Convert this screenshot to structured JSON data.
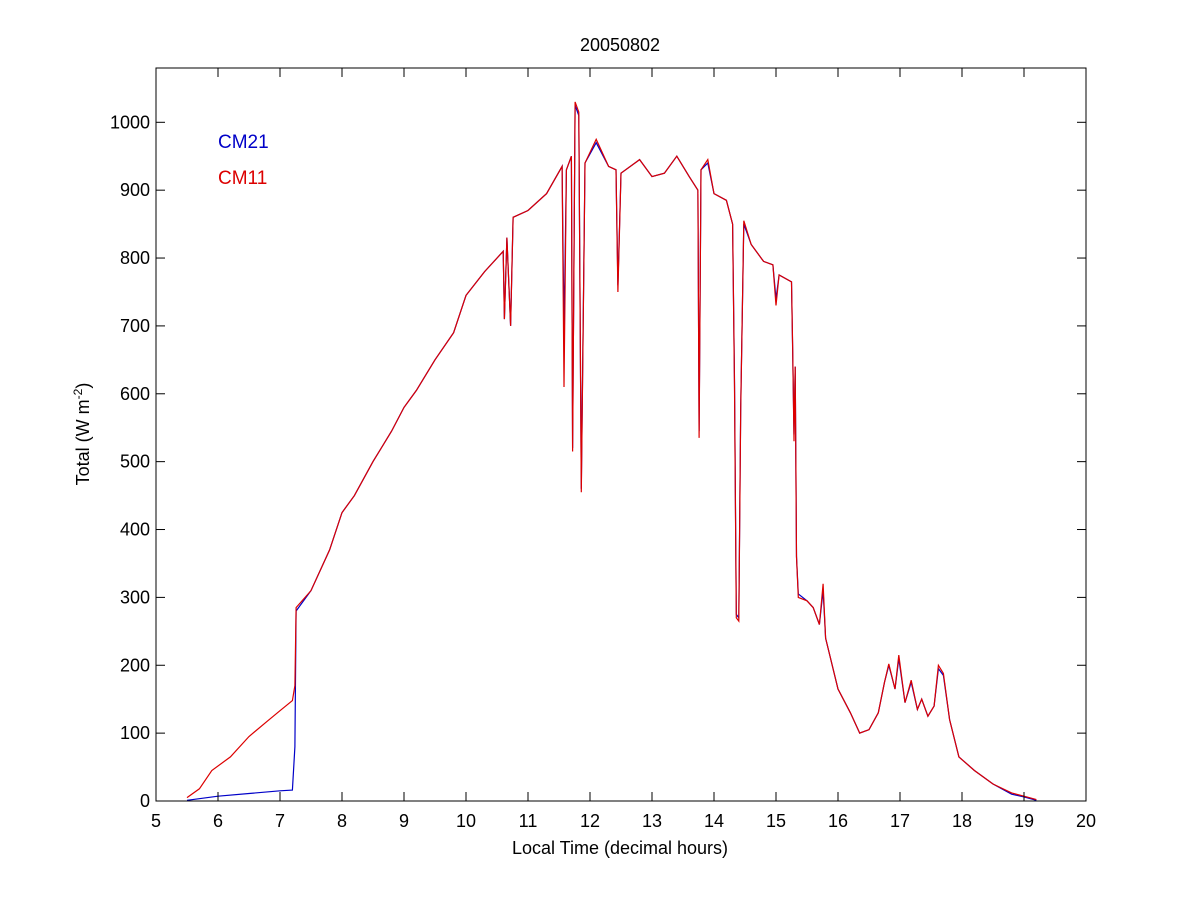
{
  "chart_data": {
    "type": "line",
    "title": "20050802",
    "xlabel": "Local Time (decimal hours)",
    "ylabel_main": "Total (W m",
    "ylabel_sup": "-2",
    "ylabel_close": ")",
    "xlim": [
      5,
      20
    ],
    "ylim": [
      0,
      1080
    ],
    "xticks": [
      5,
      6,
      7,
      8,
      9,
      10,
      11,
      12,
      13,
      14,
      15,
      16,
      17,
      18,
      19,
      20
    ],
    "yticks": [
      0,
      100,
      200,
      300,
      400,
      500,
      600,
      700,
      800,
      900,
      1000
    ],
    "grid": false,
    "legend_position": "top-left",
    "series": [
      {
        "name": "CM21",
        "color": "#0000c8",
        "points": [
          [
            5.5,
            1
          ],
          [
            6.0,
            7
          ],
          [
            6.5,
            11
          ],
          [
            7.0,
            15
          ],
          [
            7.2,
            16
          ],
          [
            7.24,
            80
          ],
          [
            7.26,
            280
          ],
          [
            7.5,
            310
          ],
          [
            7.8,
            370
          ],
          [
            8.0,
            425
          ],
          [
            8.2,
            450
          ],
          [
            8.5,
            500
          ],
          [
            8.8,
            545
          ],
          [
            9.0,
            580
          ],
          [
            9.2,
            605
          ],
          [
            9.5,
            650
          ],
          [
            9.8,
            690
          ],
          [
            10.0,
            745
          ],
          [
            10.3,
            780
          ],
          [
            10.6,
            810
          ],
          [
            10.62,
            710
          ],
          [
            10.66,
            830
          ],
          [
            10.72,
            700
          ],
          [
            10.76,
            860
          ],
          [
            11.0,
            870
          ],
          [
            11.3,
            895
          ],
          [
            11.55,
            935
          ],
          [
            11.58,
            690
          ],
          [
            11.62,
            930
          ],
          [
            11.7,
            950
          ],
          [
            11.72,
            520
          ],
          [
            11.76,
            1025
          ],
          [
            11.82,
            1010
          ],
          [
            11.86,
            460
          ],
          [
            11.92,
            940
          ],
          [
            12.1,
            970
          ],
          [
            12.3,
            935
          ],
          [
            12.42,
            930
          ],
          [
            12.45,
            760
          ],
          [
            12.5,
            925
          ],
          [
            12.8,
            945
          ],
          [
            13.0,
            920
          ],
          [
            13.2,
            925
          ],
          [
            13.4,
            950
          ],
          [
            13.6,
            920
          ],
          [
            13.74,
            900
          ],
          [
            13.76,
            545
          ],
          [
            13.79,
            930
          ],
          [
            13.9,
            940
          ],
          [
            14.0,
            895
          ],
          [
            14.2,
            885
          ],
          [
            14.3,
            850
          ],
          [
            14.33,
            620
          ],
          [
            14.36,
            275
          ],
          [
            14.4,
            270
          ],
          [
            14.43,
            580
          ],
          [
            14.48,
            850
          ],
          [
            14.6,
            820
          ],
          [
            14.8,
            795
          ],
          [
            14.95,
            790
          ],
          [
            15.0,
            740
          ],
          [
            15.05,
            775
          ],
          [
            15.25,
            765
          ],
          [
            15.27,
            660
          ],
          [
            15.29,
            540
          ],
          [
            15.31,
            640
          ],
          [
            15.33,
            360
          ],
          [
            15.36,
            305
          ],
          [
            15.5,
            295
          ],
          [
            15.6,
            285
          ],
          [
            15.7,
            260
          ],
          [
            15.76,
            310
          ],
          [
            15.8,
            240
          ],
          [
            16.0,
            165
          ],
          [
            16.2,
            130
          ],
          [
            16.35,
            100
          ],
          [
            16.5,
            105
          ],
          [
            16.65,
            130
          ],
          [
            16.75,
            175
          ],
          [
            16.82,
            200
          ],
          [
            16.92,
            165
          ],
          [
            16.98,
            210
          ],
          [
            17.08,
            145
          ],
          [
            17.18,
            175
          ],
          [
            17.28,
            135
          ],
          [
            17.35,
            150
          ],
          [
            17.45,
            125
          ],
          [
            17.55,
            140
          ],
          [
            17.62,
            195
          ],
          [
            17.7,
            185
          ],
          [
            17.8,
            120
          ],
          [
            17.95,
            65
          ],
          [
            18.2,
            45
          ],
          [
            18.5,
            25
          ],
          [
            18.8,
            10
          ],
          [
            19.0,
            6
          ],
          [
            19.2,
            1
          ]
        ]
      },
      {
        "name": "CM11",
        "color": "#dc0000",
        "points": [
          [
            5.5,
            5
          ],
          [
            5.7,
            18
          ],
          [
            5.9,
            45
          ],
          [
            6.2,
            65
          ],
          [
            6.5,
            95
          ],
          [
            6.8,
            118
          ],
          [
            7.0,
            133
          ],
          [
            7.2,
            148
          ],
          [
            7.24,
            170
          ],
          [
            7.26,
            285
          ],
          [
            7.5,
            310
          ],
          [
            7.8,
            370
          ],
          [
            8.0,
            425
          ],
          [
            8.2,
            450
          ],
          [
            8.5,
            500
          ],
          [
            8.8,
            545
          ],
          [
            9.0,
            580
          ],
          [
            9.2,
            605
          ],
          [
            9.5,
            650
          ],
          [
            9.8,
            690
          ],
          [
            10.0,
            745
          ],
          [
            10.3,
            780
          ],
          [
            10.6,
            810
          ],
          [
            10.62,
            710
          ],
          [
            10.66,
            830
          ],
          [
            10.72,
            700
          ],
          [
            10.76,
            860
          ],
          [
            11.0,
            870
          ],
          [
            11.3,
            895
          ],
          [
            11.55,
            935
          ],
          [
            11.58,
            610
          ],
          [
            11.62,
            930
          ],
          [
            11.7,
            950
          ],
          [
            11.72,
            515
          ],
          [
            11.76,
            1030
          ],
          [
            11.82,
            1015
          ],
          [
            11.86,
            455
          ],
          [
            11.92,
            940
          ],
          [
            12.1,
            975
          ],
          [
            12.3,
            935
          ],
          [
            12.42,
            930
          ],
          [
            12.45,
            750
          ],
          [
            12.5,
            925
          ],
          [
            12.8,
            945
          ],
          [
            13.0,
            920
          ],
          [
            13.2,
            925
          ],
          [
            13.4,
            950
          ],
          [
            13.6,
            920
          ],
          [
            13.74,
            900
          ],
          [
            13.76,
            535
          ],
          [
            13.79,
            930
          ],
          [
            13.9,
            945
          ],
          [
            14.0,
            895
          ],
          [
            14.2,
            885
          ],
          [
            14.3,
            850
          ],
          [
            14.33,
            610
          ],
          [
            14.36,
            270
          ],
          [
            14.4,
            265
          ],
          [
            14.43,
            575
          ],
          [
            14.48,
            855
          ],
          [
            14.6,
            820
          ],
          [
            14.8,
            795
          ],
          [
            14.95,
            790
          ],
          [
            15.0,
            730
          ],
          [
            15.05,
            775
          ],
          [
            15.25,
            765
          ],
          [
            15.27,
            665
          ],
          [
            15.29,
            530
          ],
          [
            15.31,
            640
          ],
          [
            15.33,
            360
          ],
          [
            15.36,
            300
          ],
          [
            15.5,
            295
          ],
          [
            15.6,
            285
          ],
          [
            15.7,
            260
          ],
          [
            15.76,
            320
          ],
          [
            15.8,
            240
          ],
          [
            16.0,
            165
          ],
          [
            16.2,
            130
          ],
          [
            16.35,
            100
          ],
          [
            16.5,
            105
          ],
          [
            16.65,
            130
          ],
          [
            16.75,
            175
          ],
          [
            16.82,
            202
          ],
          [
            16.92,
            165
          ],
          [
            16.98,
            215
          ],
          [
            17.08,
            145
          ],
          [
            17.18,
            178
          ],
          [
            17.28,
            135
          ],
          [
            17.35,
            150
          ],
          [
            17.45,
            125
          ],
          [
            17.55,
            140
          ],
          [
            17.62,
            200
          ],
          [
            17.7,
            188
          ],
          [
            17.8,
            120
          ],
          [
            17.95,
            65
          ],
          [
            18.2,
            45
          ],
          [
            18.5,
            25
          ],
          [
            18.8,
            12
          ],
          [
            19.0,
            7
          ],
          [
            19.2,
            2
          ]
        ]
      }
    ]
  }
}
